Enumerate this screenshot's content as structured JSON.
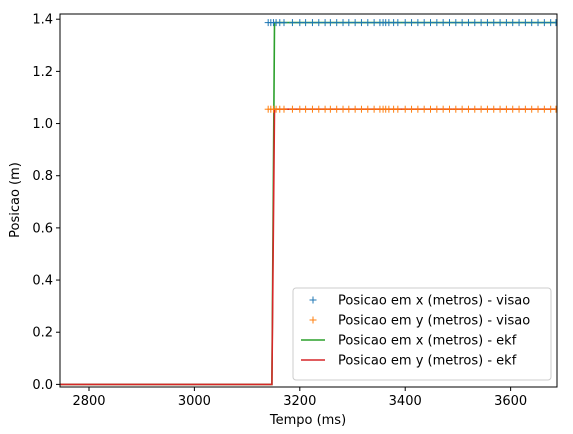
{
  "chart_data": {
    "type": "line",
    "title": "",
    "xlabel": "Tempo (ms)",
    "ylabel": "Posicao (m)",
    "xlim": [
      2745,
      3688
    ],
    "ylim": [
      -0.01,
      1.42
    ],
    "xticks": [
      2800,
      3000,
      3200,
      3400,
      3600
    ],
    "yticks": [
      0.0,
      0.2,
      0.4,
      0.6,
      0.8,
      1.0,
      1.2,
      1.4
    ],
    "ytick_labels": [
      "0.0",
      "0.2",
      "0.4",
      "0.6",
      "0.8",
      "1.0",
      "1.2",
      "1.4"
    ],
    "grid": false,
    "legend_position": "lower-right",
    "series": [
      {
        "name": "Posicao em x (metros) - visao",
        "kind": "marker",
        "marker": "+",
        "color": "#1f77b4",
        "x": [
          3140,
          3145,
          3150,
          3155,
          3162,
          3170,
          3186,
          3200,
          3211,
          3224,
          3236,
          3248,
          3258,
          3270,
          3282,
          3293,
          3305,
          3317,
          3329,
          3341,
          3352,
          3358,
          3363,
          3369,
          3378,
          3386,
          3400,
          3412,
          3424,
          3436,
          3448,
          3460,
          3472,
          3484,
          3496,
          3508,
          3520,
          3532,
          3544,
          3556,
          3568,
          3580,
          3592,
          3604,
          3616,
          3628,
          3640,
          3652,
          3664,
          3676,
          3686
        ],
        "y_value": 1.387
      },
      {
        "name": "Posicao em y (metros) - visao",
        "kind": "marker",
        "marker": "+",
        "color": "#ff7f0e",
        "x": [
          3140,
          3145,
          3150,
          3155,
          3162,
          3170,
          3186,
          3200,
          3211,
          3224,
          3236,
          3248,
          3258,
          3270,
          3282,
          3293,
          3305,
          3317,
          3329,
          3341,
          3352,
          3358,
          3363,
          3369,
          3378,
          3386,
          3400,
          3412,
          3424,
          3436,
          3448,
          3460,
          3472,
          3484,
          3496,
          3508,
          3520,
          3532,
          3544,
          3556,
          3568,
          3580,
          3592,
          3604,
          3616,
          3628,
          3640,
          3652,
          3664,
          3676,
          3686
        ],
        "y_value": 1.055
      },
      {
        "name": "Posicao em x (metros) - ekf",
        "kind": "line",
        "color": "#2ca02c",
        "points": [
          [
            2745,
            0.0
          ],
          [
            3147,
            0.0
          ],
          [
            3152,
            1.387
          ],
          [
            3688,
            1.387
          ]
        ]
      },
      {
        "name": "Posicao em y (metros) - ekf",
        "kind": "line",
        "color": "#d62728",
        "points": [
          [
            2745,
            0.0
          ],
          [
            3147,
            0.0
          ],
          [
            3152,
            1.055
          ],
          [
            3688,
            1.055
          ]
        ]
      }
    ]
  }
}
